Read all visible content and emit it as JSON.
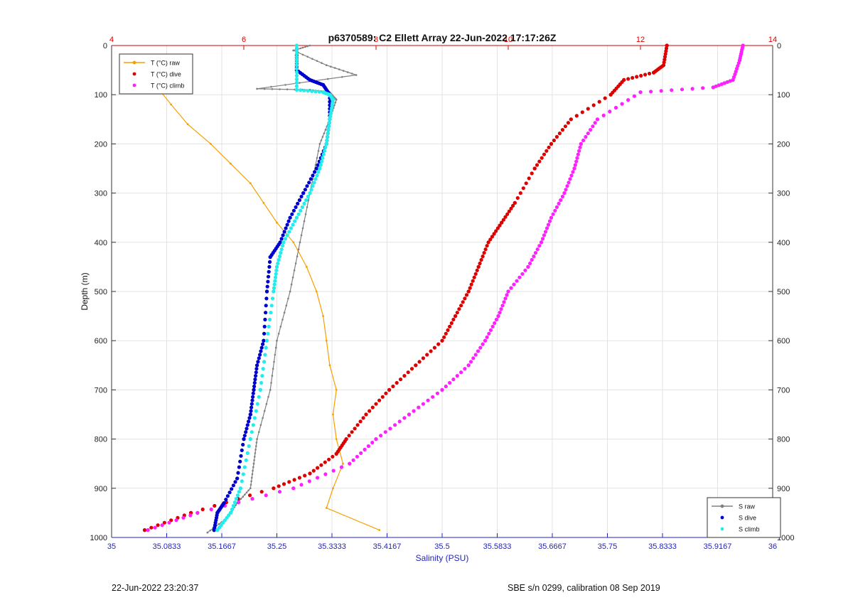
{
  "chart_data": {
    "type": "scatter",
    "title": "p6370589: C2 Ellett Array 22-Jun-2022 17:17:26Z",
    "ylabel": "Depth (m)",
    "xlabel_bottom": "Salinity (PSU)",
    "xlim_bottom": [
      35,
      36
    ],
    "xlim_top": [
      4,
      14
    ],
    "ylim": [
      0,
      1000
    ],
    "y_reversed": true,
    "grid": true,
    "y_ticks": [
      0,
      100,
      200,
      300,
      400,
      500,
      600,
      700,
      800,
      900,
      1000
    ],
    "x_top_ticks": [
      "4",
      "6",
      "8",
      "10",
      "12",
      "14"
    ],
    "x_bottom_ticks": [
      "35",
      "35.0833",
      "35.1667",
      "35.25",
      "35.3333",
      "35.4167",
      "35.5",
      "35.5833",
      "35.6667",
      "35.75",
      "35.8333",
      "35.9167",
      "36"
    ],
    "colors": {
      "top_axis": "#d40000",
      "bottom_axis": "#2222cc",
      "t_raw": "#f5a000",
      "t_dive": "#dd0000",
      "t_climb": "#ff20ff",
      "s_raw": "#808080",
      "s_dive": "#0000cc",
      "s_climb": "#22ecec"
    },
    "legend_temperature": {
      "placement": "top-left",
      "entries": [
        "T (°C) raw",
        "T (°C) dive",
        "T (°C) climb"
      ]
    },
    "legend_salinity": {
      "placement": "bottom-right",
      "entries": [
        "S raw",
        "S dive",
        "S climb"
      ]
    },
    "series": [
      {
        "name": "T (°C) raw",
        "axis": "top",
        "x": [
          8.05,
          7.25,
          7.35,
          7.5,
          7.4,
          7.35,
          7.4,
          7.3,
          7.25,
          7.2,
          7.1,
          6.95,
          6.75,
          6.5,
          6.3,
          6.1,
          5.8,
          5.5,
          5.15,
          4.9,
          4.75
        ],
        "y": [
          985,
          940,
          900,
          850,
          800,
          750,
          700,
          650,
          600,
          550,
          500,
          450,
          400,
          360,
          320,
          280,
          240,
          200,
          160,
          120,
          95
        ]
      },
      {
        "name": "T (°C) dive",
        "axis": "top",
        "x": [
          4.5,
          5.2,
          6.45,
          7.0,
          7.4,
          7.55,
          7.85,
          8.2,
          8.6,
          9.0,
          9.2,
          9.4,
          9.55,
          9.7,
          9.9,
          10.1,
          10.4,
          10.65,
          10.95,
          11.55,
          11.75,
          12.2,
          12.35,
          12.4
        ],
        "y": [
          985,
          950,
          900,
          870,
          830,
          800,
          750,
          700,
          650,
          600,
          550,
          500,
          450,
          400,
          360,
          320,
          250,
          200,
          150,
          100,
          70,
          55,
          40,
          0
        ]
      },
      {
        "name": "T (°C) climb",
        "axis": "top",
        "x": [
          4.55,
          5.3,
          6.75,
          7.6,
          8.0,
          8.5,
          9.0,
          9.4,
          9.65,
          9.85,
          10.0,
          10.3,
          10.5,
          10.65,
          10.85,
          11.0,
          11.1,
          11.35,
          12.0,
          13.1,
          13.4,
          13.5,
          13.55
        ],
        "y": [
          985,
          950,
          900,
          850,
          800,
          750,
          700,
          650,
          600,
          550,
          500,
          450,
          400,
          350,
          300,
          250,
          200,
          150,
          95,
          85,
          70,
          30,
          0
        ]
      },
      {
        "name": "S raw",
        "axis": "bottom",
        "x": [
          35.145,
          35.175,
          35.19,
          35.21,
          35.215,
          35.22,
          35.24,
          35.25,
          35.27,
          35.285,
          35.3,
          35.315,
          35.33,
          35.34,
          35.33,
          35.3,
          35.22,
          35.37,
          35.325,
          35.275,
          35.3
        ],
        "y": [
          990,
          960,
          930,
          900,
          850,
          800,
          700,
          600,
          500,
          400,
          300,
          200,
          150,
          110,
          95,
          90,
          88,
          60,
          40,
          10,
          0
        ]
      },
      {
        "name": "S dive",
        "axis": "bottom",
        "x": [
          35.155,
          35.16,
          35.17,
          35.19,
          35.2,
          35.21,
          35.215,
          35.22,
          35.23,
          35.235,
          35.24,
          35.255,
          35.27,
          35.29,
          35.31,
          35.325,
          35.33,
          35.33,
          35.32,
          35.3,
          35.28,
          35.28
        ],
        "y": [
          985,
          950,
          930,
          880,
          800,
          750,
          700,
          650,
          600,
          500,
          430,
          400,
          350,
          300,
          250,
          200,
          150,
          100,
          80,
          70,
          50,
          20
        ]
      },
      {
        "name": "S climb",
        "axis": "bottom",
        "x": [
          35.16,
          35.18,
          35.195,
          35.21,
          35.225,
          35.235,
          35.245,
          35.25,
          35.26,
          35.28,
          35.3,
          35.315,
          35.325,
          35.33,
          35.335,
          35.33,
          35.32,
          35.28,
          35.28,
          35.28
        ],
        "y": [
          985,
          950,
          900,
          800,
          700,
          600,
          500,
          450,
          400,
          350,
          300,
          250,
          200,
          150,
          110,
          100,
          95,
          90,
          40,
          0
        ]
      }
    ]
  },
  "footer": {
    "left": "22-Jun-2022 23:20:37",
    "right": "SBE s/n 0299, calibration 08 Sep 2019"
  }
}
